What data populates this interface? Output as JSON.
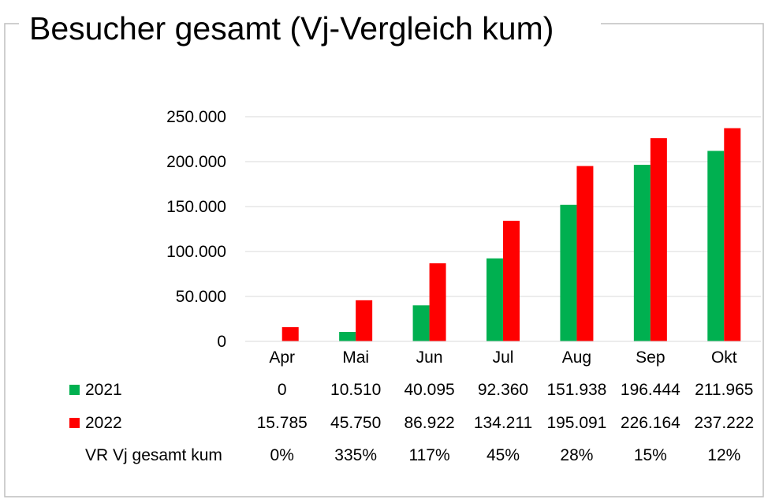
{
  "chart_data": {
    "type": "bar",
    "title": "Besucher gesamt (Vj-Vergleich kum)",
    "categories": [
      "Apr",
      "Mai",
      "Jun",
      "Jul",
      "Aug",
      "Sep",
      "Okt"
    ],
    "series": [
      {
        "name": "2021",
        "color": "#00b050",
        "values": [
          0,
          10510,
          40095,
          92360,
          151938,
          196444,
          211965
        ],
        "labels": [
          "0",
          "10.510",
          "40.095",
          "92.360",
          "151.938",
          "196.444",
          "211.965"
        ]
      },
      {
        "name": "2022",
        "color": "#ff0000",
        "values": [
          15785,
          45750,
          86922,
          134211,
          195091,
          226164,
          237222
        ],
        "labels": [
          "15.785",
          "45.750",
          "86.922",
          "134.211",
          "195.091",
          "226.164",
          "237.222"
        ]
      }
    ],
    "extra_row": {
      "name": "VR Vj gesamt kum",
      "labels": [
        "0%",
        "335%",
        "117%",
        "45%",
        "28%",
        "15%",
        "12%"
      ]
    },
    "y_ticks": [
      {
        "value": 0,
        "label": "0"
      },
      {
        "value": 50000,
        "label": "50.000"
      },
      {
        "value": 100000,
        "label": "100.000"
      },
      {
        "value": 150000,
        "label": "150.000"
      },
      {
        "value": 200000,
        "label": "200.000"
      },
      {
        "value": 250000,
        "label": "250.000"
      }
    ],
    "ylim": [
      0,
      250000
    ],
    "xlabel": "",
    "ylabel": "",
    "grid": true,
    "legend": "data-table"
  }
}
